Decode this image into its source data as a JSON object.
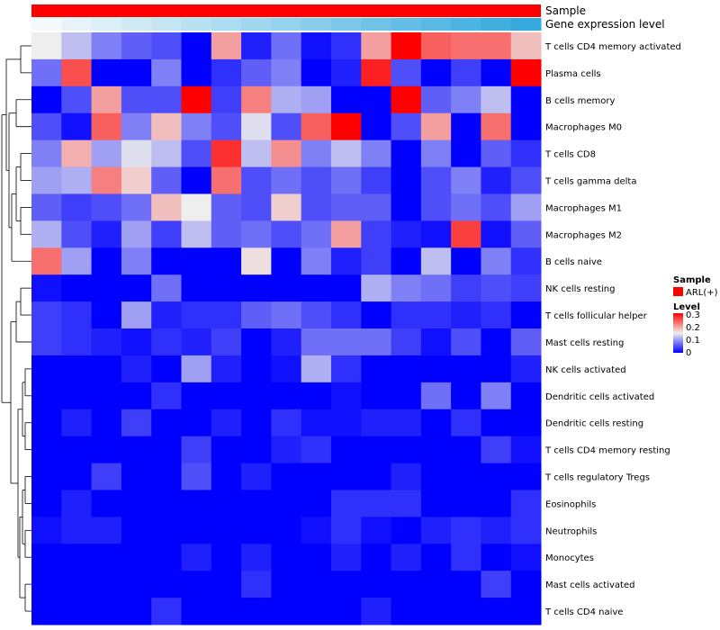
{
  "chart_data": {
    "type": "heatmap",
    "annotations": {
      "top_label": "Sample",
      "second_label": "Gene expression level"
    },
    "rows": [
      "T cells CD4 memory activated",
      "Plasma cells",
      "B cells memory",
      "Macrophages M0",
      "T cells CD8",
      "T cells gamma delta",
      "Macrophages M1",
      "Macrophages M2",
      "B cells naive",
      "NK cells resting",
      "T cells follicular helper",
      "Mast cells resting",
      "NK cells activated",
      "Dendritic cells activated",
      "Dendritic cells resting",
      "T cells CD4 memory resting",
      "T cells regulatory  Tregs",
      "Eosinophils",
      "Neutrophils",
      "Monocytes",
      "Mast cells activated",
      "T cells CD4 naive"
    ],
    "n_columns": 17,
    "values": [
      [
        0.15,
        0.12,
        0.08,
        0.06,
        0.05,
        0.0,
        0.2,
        0.02,
        0.07,
        0.01,
        0.03,
        0.2,
        0.3,
        0.24,
        0.23,
        0.23,
        0.18
      ],
      [
        0.07,
        0.25,
        0.0,
        0.0,
        0.08,
        0.0,
        0.03,
        0.06,
        0.08,
        0.0,
        0.02,
        0.28,
        0.05,
        0.0,
        0.04,
        0.0,
        0.3
      ],
      [
        0.0,
        0.05,
        0.2,
        0.05,
        0.05,
        0.3,
        0.04,
        0.22,
        0.11,
        0.1,
        0.0,
        0.0,
        0.3,
        0.06,
        0.08,
        0.12,
        0.0
      ],
      [
        0.05,
        0.01,
        0.24,
        0.08,
        0.18,
        0.08,
        0.05,
        0.14,
        0.05,
        0.24,
        0.3,
        0.0,
        0.05,
        0.2,
        0.0,
        0.23,
        0.0
      ],
      [
        0.08,
        0.19,
        0.1,
        0.14,
        0.12,
        0.05,
        0.27,
        0.12,
        0.21,
        0.08,
        0.12,
        0.08,
        0.0,
        0.08,
        0.0,
        0.06,
        0.03
      ],
      [
        0.1,
        0.11,
        0.22,
        0.17,
        0.06,
        0.0,
        0.23,
        0.05,
        0.07,
        0.05,
        0.07,
        0.04,
        0.0,
        0.05,
        0.08,
        0.02,
        0.05
      ],
      [
        0.06,
        0.04,
        0.05,
        0.07,
        0.18,
        0.15,
        0.06,
        0.05,
        0.17,
        0.05,
        0.06,
        0.06,
        0.0,
        0.05,
        0.07,
        0.05,
        0.1
      ],
      [
        0.11,
        0.05,
        0.02,
        0.1,
        0.04,
        0.12,
        0.06,
        0.07,
        0.05,
        0.07,
        0.2,
        0.04,
        0.02,
        0.01,
        0.26,
        0.01,
        0.06
      ],
      [
        0.23,
        0.1,
        0.0,
        0.08,
        0.0,
        0.0,
        0.0,
        0.16,
        0.0,
        0.08,
        0.02,
        0.04,
        0.0,
        0.12,
        0.0,
        0.08,
        0.03
      ],
      [
        0.01,
        0.0,
        0.0,
        0.0,
        0.07,
        0.0,
        0.0,
        0.0,
        0.0,
        0.0,
        0.0,
        0.11,
        0.08,
        0.07,
        0.04,
        0.05,
        0.04
      ],
      [
        0.04,
        0.03,
        0.0,
        0.1,
        0.02,
        0.03,
        0.03,
        0.06,
        0.07,
        0.05,
        0.03,
        0.0,
        0.03,
        0.03,
        0.02,
        0.03,
        0.0
      ],
      [
        0.04,
        0.03,
        0.02,
        0.01,
        0.03,
        0.02,
        0.04,
        0.0,
        0.02,
        0.07,
        0.07,
        0.07,
        0.04,
        0.01,
        0.05,
        0.0,
        0.06
      ],
      [
        0.0,
        0.0,
        0.0,
        0.02,
        0.0,
        0.1,
        0.02,
        0.0,
        0.01,
        0.11,
        0.03,
        0.0,
        0.0,
        0.0,
        0.0,
        0.0,
        0.02
      ],
      [
        0.0,
        0.0,
        0.0,
        0.0,
        0.03,
        0.0,
        0.0,
        0.0,
        0.0,
        0.0,
        0.01,
        0.0,
        0.0,
        0.07,
        0.0,
        0.08,
        0.0
      ],
      [
        0.0,
        0.02,
        0.0,
        0.04,
        0.0,
        0.0,
        0.02,
        0.0,
        0.03,
        0.01,
        0.01,
        0.02,
        0.02,
        0.0,
        0.03,
        0.0,
        0.0
      ],
      [
        0.0,
        0.0,
        0.0,
        0.0,
        0.0,
        0.04,
        0.0,
        0.0,
        0.02,
        0.03,
        0.0,
        0.0,
        0.0,
        0.0,
        0.0,
        0.04,
        0.01
      ],
      [
        0.0,
        0.0,
        0.04,
        0.0,
        0.0,
        0.05,
        0.0,
        0.02,
        0.0,
        0.0,
        0.0,
        0.0,
        0.02,
        0.0,
        0.0,
        0.0,
        0.0
      ],
      [
        0.0,
        0.02,
        0.0,
        0.0,
        0.0,
        0.0,
        0.0,
        0.0,
        0.0,
        0.0,
        0.03,
        0.03,
        0.03,
        0.0,
        0.0,
        0.0,
        0.03
      ],
      [
        0.01,
        0.02,
        0.02,
        0.0,
        0.0,
        0.0,
        0.0,
        0.0,
        0.0,
        0.01,
        0.03,
        0.01,
        0.0,
        0.02,
        0.03,
        0.02,
        0.03
      ],
      [
        0.0,
        0.0,
        0.0,
        0.0,
        0.0,
        0.02,
        0.0,
        0.02,
        0.0,
        0.0,
        0.02,
        0.0,
        0.02,
        0.0,
        0.03,
        0.0,
        0.01
      ],
      [
        0.0,
        0.0,
        0.0,
        0.0,
        0.0,
        0.0,
        0.0,
        0.03,
        0.0,
        0.0,
        0.0,
        0.0,
        0.0,
        0.0,
        0.0,
        0.04,
        0.0
      ],
      [
        0.0,
        0.0,
        0.0,
        0.0,
        0.03,
        0.0,
        0.0,
        0.0,
        0.0,
        0.0,
        0.0,
        0.02,
        0.0,
        0.0,
        0.0,
        0.0,
        0.0
      ]
    ],
    "column_annotation_colors": {
      "sample": "#ff0000",
      "gene_expression": [
        "#f4f9fc",
        "#e8f4fa",
        "#dcf0f8",
        "#d0ebf6",
        "#c4e6f4",
        "#b8e1f2",
        "#acdcf1",
        "#a0d7ef",
        "#94d2ed",
        "#88cdeb",
        "#7cc8e9",
        "#70c3e7",
        "#64bee6",
        "#58b9e4",
        "#4cb4e2",
        "#40afe0",
        "#34aade"
      ]
    },
    "color_scale": {
      "min": 0,
      "max": 0.3,
      "low": "#0000ff",
      "mid": "#eeeeee",
      "high": "#ff0000",
      "mid_value": 0.15
    },
    "legend": {
      "sample_title": "Sample",
      "sample_entries": [
        {
          "label": "ARL(+)",
          "color": "#ff0000"
        }
      ],
      "level_title": "Level",
      "level_ticks": [
        "0.3",
        "0.2",
        "0.1",
        "0"
      ]
    },
    "row_dendrogram": [
      {
        "a": 0,
        "b": 1,
        "h": 2
      },
      {
        "a": 2,
        "b": 3,
        "h": 3
      },
      {
        "a": 4,
        "b": 5,
        "h": 2
      },
      {
        "a": 6,
        "b": 7,
        "h": 2
      },
      {
        "a": 9,
        "b": 10,
        "h": 2
      },
      {
        "a": 12,
        "b": 13,
        "h": 1
      },
      {
        "a": 14,
        "b": 15,
        "h": 1
      },
      {
        "a": 16,
        "b": 17,
        "h": 1
      },
      {
        "a": 18,
        "b": 19,
        "h": 1
      },
      {
        "a": 20,
        "b": 21,
        "h": 1
      }
    ]
  }
}
